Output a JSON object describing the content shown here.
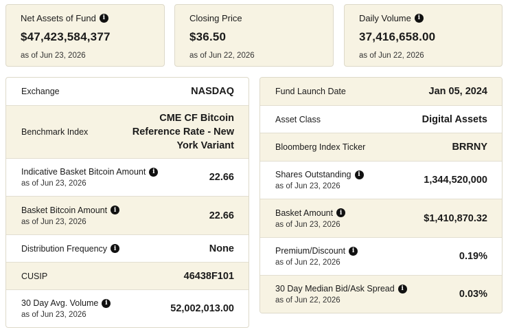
{
  "cards": [
    {
      "label": "Net Assets of Fund",
      "value": "$47,423,584,377",
      "sub": "as of Jun 23, 2026",
      "info": true
    },
    {
      "label": "Closing Price",
      "value": "$36.50",
      "sub": "as of Jun 22, 2026",
      "info": false
    },
    {
      "label": "Daily Volume",
      "value": "37,416,658.00",
      "sub": "as of Jun 22, 2026",
      "info": true
    }
  ],
  "left_table": [
    {
      "label": "Exchange",
      "value": "NASDAQ",
      "sub": ""
    },
    {
      "label": "Benchmark Index",
      "value": "CME CF Bitcoin Reference Rate - New York Variant",
      "sub": ""
    },
    {
      "label": "Indicative Basket Bitcoin Amount",
      "value": "22.66",
      "sub": "as of Jun 23, 2026"
    },
    {
      "label": "Basket Bitcoin Amount",
      "value": "22.66",
      "sub": "as of Jun 23, 2026"
    },
    {
      "label": "Distribution Frequency",
      "value": "None",
      "sub": ""
    },
    {
      "label": "CUSIP",
      "value": "46438F101",
      "sub": ""
    },
    {
      "label": "30 Day Avg. Volume",
      "value": "52,002,013.00",
      "sub": "as of Jun 23, 2026"
    }
  ],
  "right_table": [
    {
      "label": "Fund Launch Date",
      "value": "Jan 05, 2024",
      "sub": ""
    },
    {
      "label": "Asset Class",
      "value": "Digital Assets",
      "sub": ""
    },
    {
      "label": "Bloomberg Index Ticker",
      "value": "BRRNY",
      "sub": ""
    },
    {
      "label": "Shares Outstanding",
      "value": "1,344,520,000",
      "sub": "as of Jun 23, 2026"
    },
    {
      "label": "Basket Amount",
      "value": "$1,410,870.32",
      "sub": "as of Jun 23, 2026"
    },
    {
      "label": "Premium/Discount",
      "value": "0.19%",
      "sub": "as of Jun 22, 2026"
    },
    {
      "label": "30 Day Median Bid/Ask Spread",
      "value": "0.03%",
      "sub": "as of Jun 22, 2026"
    }
  ],
  "icons": {
    "info": "info-icon"
  },
  "colors": {
    "card_bg": "#f7f3e3",
    "border": "#ddd9c9",
    "text": "#1a1a1a"
  }
}
